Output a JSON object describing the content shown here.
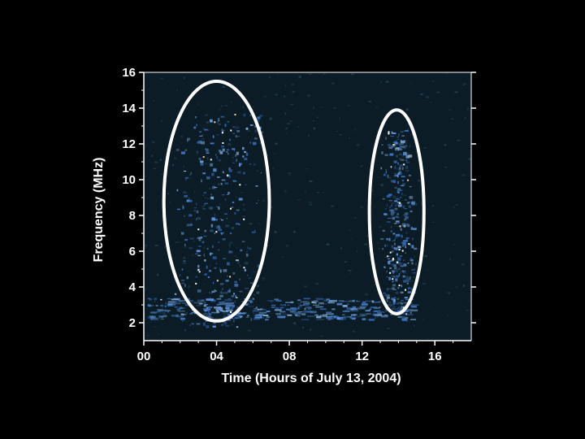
{
  "chart_data": {
    "type": "heatmap",
    "xlabel": "Time (Hours of July 13, 2004)",
    "ylabel": "Frequency (MHz)",
    "xlim": [
      0,
      18
    ],
    "ylim": [
      1,
      16
    ],
    "x_ticks": [
      {
        "value": 0,
        "label": "00"
      },
      {
        "value": 4,
        "label": "04"
      },
      {
        "value": 8,
        "label": "08"
      },
      {
        "value": 12,
        "label": "12"
      },
      {
        "value": 16,
        "label": "16"
      }
    ],
    "y_ticks": [
      {
        "value": 2,
        "label": "2"
      },
      {
        "value": 4,
        "label": "4"
      },
      {
        "value": 6,
        "label": "6"
      },
      {
        "value": 8,
        "label": "8"
      },
      {
        "value": 10,
        "label": "10"
      },
      {
        "value": 12,
        "label": "12"
      },
      {
        "value": 14,
        "label": "14"
      },
      {
        "value": 16,
        "label": "16"
      }
    ],
    "grid": false,
    "background_color": "#0b1c26",
    "highlight_color": "#ffffff",
    "emission_regions": [
      {
        "t_start": 1.2,
        "t_end": 7.0,
        "f_low": 1.8,
        "f_high": 13.8,
        "intensity": 0.8
      },
      {
        "t_start": 12.9,
        "t_end": 15.0,
        "f_low": 2.7,
        "f_high": 12.8,
        "intensity": 0.75
      },
      {
        "t_start": 0.2,
        "t_end": 14.8,
        "f_low": 2.2,
        "f_high": 3.4,
        "intensity": 0.9
      }
    ],
    "highlighted_regions": [
      {
        "t_center": 4.0,
        "f_center": 8.8,
        "t_half_width": 2.9,
        "f_half_height": 6.7
      },
      {
        "t_center": 13.9,
        "f_center": 8.2,
        "t_half_width": 1.5,
        "f_half_height": 5.7
      }
    ]
  }
}
